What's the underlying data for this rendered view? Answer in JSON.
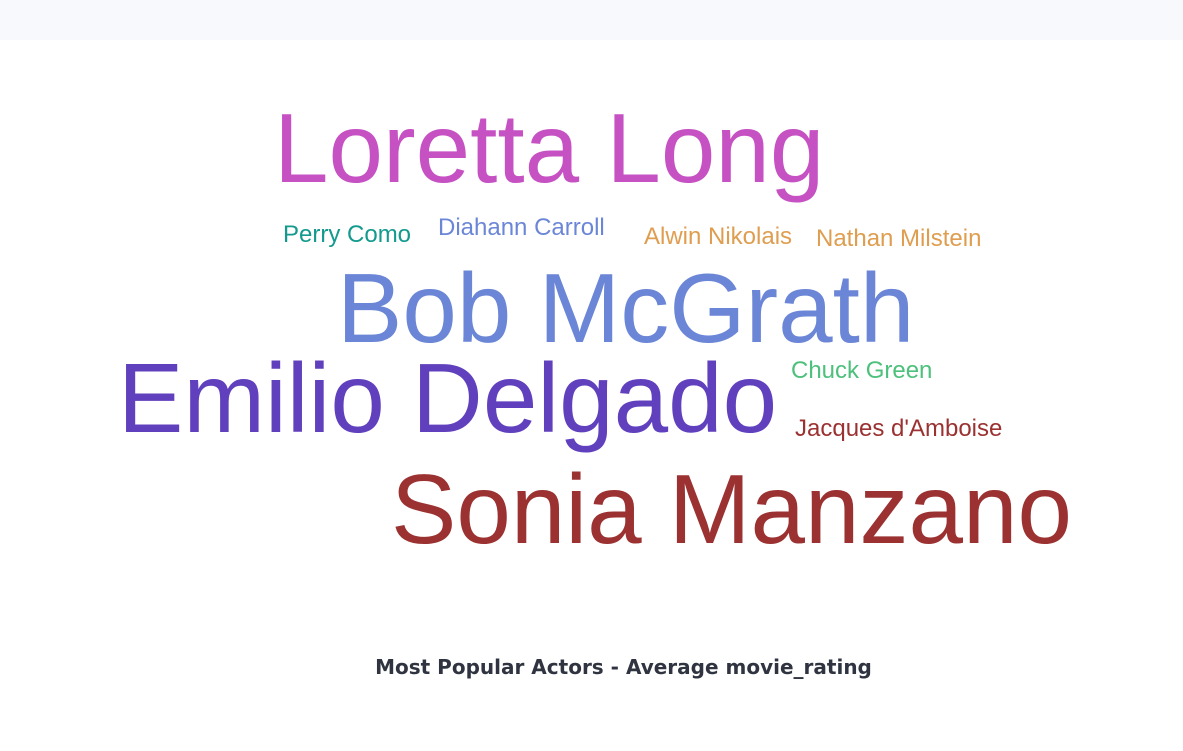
{
  "chart_data": {
    "type": "wordcloud",
    "title": "Most Popular Actors - Average movie_rating",
    "words": [
      {
        "text": "Loretta Long",
        "color": "#c651c3"
      },
      {
        "text": "Perry Como",
        "color": "#139a8e"
      },
      {
        "text": "Diahann Carroll",
        "color": "#6b86d6"
      },
      {
        "text": "Alwin Nikolais",
        "color": "#df9d4f"
      },
      {
        "text": "Nathan Milstein",
        "color": "#df9d4f"
      },
      {
        "text": "Bob McGrath",
        "color": "#6b86d6"
      },
      {
        "text": "Emilio Delgado",
        "color": "#6040bd"
      },
      {
        "text": "Chuck Green",
        "color": "#4dc07c"
      },
      {
        "text": "Jacques d'Amboise",
        "color": "#9b3131"
      },
      {
        "text": "Sonia Manzano",
        "color": "#9b3131"
      }
    ]
  }
}
